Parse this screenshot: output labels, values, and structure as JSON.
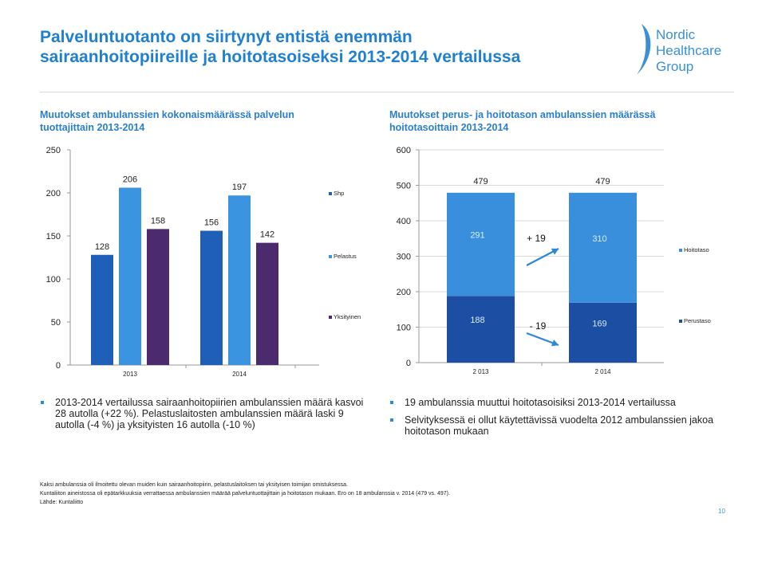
{
  "header": {
    "title_line1": "Palveluntuotanto on siirtynyt entistä enemmän",
    "title_line2": "sairaanhoitopiireille ja hoitotasoiseksi 2013-2014 vertailussa",
    "logo": {
      "line1": "Nordic",
      "line2": "Healthcare",
      "line3": "Group",
      "icon": "nhg-swoosh-logo"
    }
  },
  "left_chart": {
    "subtitle_line1": "Muutokset ambulanssien kokonaismäärässä palvelun",
    "subtitle_line2": "tuottajittain 2013-2014"
  },
  "right_chart": {
    "subtitle_line1": "Muutokset perus- ja hoitotason ambulanssien määrässä",
    "subtitle_line2": "hoitotasoittain 2013-2014"
  },
  "chart_data": [
    {
      "type": "bar",
      "categories": [
        "2013",
        "2014"
      ],
      "series": [
        {
          "name": "Shp",
          "values": [
            128,
            156
          ],
          "color": "#1f5fb8"
        },
        {
          "name": "Pelastus",
          "values": [
            206,
            197
          ],
          "color": "#3b94e0"
        },
        {
          "name": "Yksityinen",
          "values": [
            158,
            142
          ],
          "color": "#4b2a6e"
        }
      ],
      "data_labels": [
        [
          "128",
          "206",
          "158"
        ],
        [
          "156",
          "197",
          "142"
        ]
      ],
      "ylim": [
        0,
        250
      ],
      "yticks": [
        "0",
        "50",
        "100",
        "150",
        "200",
        "250"
      ],
      "legend": "right",
      "title": "",
      "xlabel": "",
      "ylabel": ""
    },
    {
      "type": "bar",
      "stacked": true,
      "categories": [
        "2 013",
        "2 014"
      ],
      "series": [
        {
          "name": "Perustaso",
          "values": [
            188,
            169
          ],
          "color": "#1c4fa3"
        },
        {
          "name": "Hoitotaso",
          "values": [
            291,
            310
          ],
          "color": "#3a8fdc"
        }
      ],
      "totals": [
        "479",
        "479"
      ],
      "segment_labels": {
        "Perustaso": [
          "188",
          "169"
        ],
        "Hoitotaso": [
          "291",
          "310"
        ]
      },
      "annotations": [
        "+ 19",
        "- 19"
      ],
      "ylim": [
        0,
        600
      ],
      "yticks": [
        "0",
        "100",
        "200",
        "300",
        "400",
        "500",
        "600"
      ],
      "legend": "right",
      "gridlines": true,
      "title": "",
      "xlabel": "",
      "ylabel": ""
    }
  ],
  "bullets_left": [
    "2013-2014 vertailussa sairaanhoitopiirien ambulanssien määrä kasvoi 28 autolla (+22 %). Pelastuslaitosten ambulanssien määrä laski 9 autolla (-4 %) ja yksityisten 16 autolla (-10 %)"
  ],
  "bullets_right": [
    "19 ambulanssia muuttui hoitotasoisiksi 2013-2014 vertailussa",
    "Selvityksessä ei ollut käytettävissä vuodelta 2012 ambulanssien jakoa hoitotason mukaan"
  ],
  "footnotes": [
    "Kaksi ambulanssia oli ilmoitettu olevan muiden kuin sairaanhoitopiirin, pelastuslaitoksen tai yksityisen toimijan omistuksessa.",
    "Kuntaliiton aineistossa oli epätarkkuuksia verrattaessa ambulanssien määrää palveluntuottajittain ja hoitotason mukaan. Ero on 18 ambulanssia v. 2014 (479 vs. 497).",
    "Lähde: Kuntaliitto"
  ],
  "page_number": "10"
}
